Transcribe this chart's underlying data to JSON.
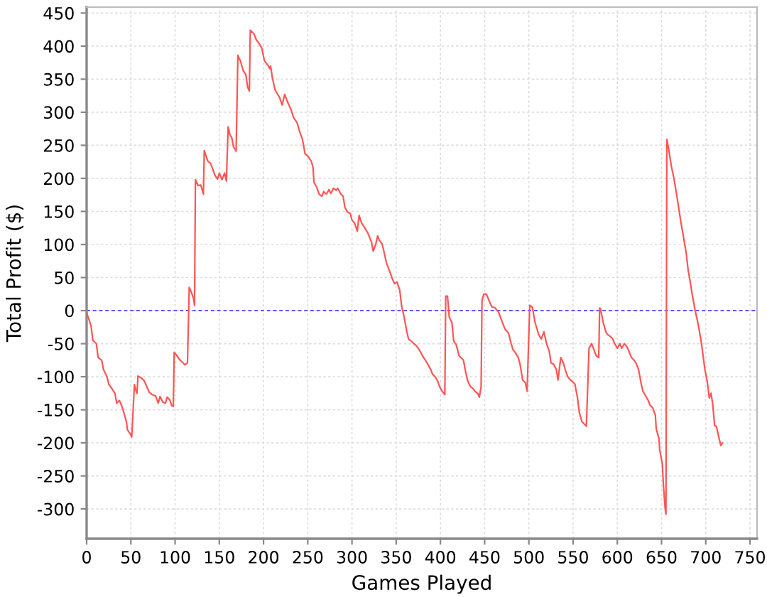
{
  "chart_data": {
    "type": "line",
    "xlabel": "Games Played",
    "ylabel": "Total Profit ($)",
    "x": [
      0,
      5,
      7,
      11,
      13,
      17,
      19,
      23,
      25,
      28,
      32,
      34,
      37,
      40,
      42,
      45,
      46,
      49,
      51,
      54,
      56,
      57,
      58,
      62,
      65,
      67,
      71,
      74,
      78,
      81,
      83,
      86,
      89,
      91,
      94,
      96,
      98,
      99,
      102,
      105,
      109,
      111,
      114,
      116,
      118,
      121,
      122,
      123,
      126,
      129,
      132,
      133,
      137,
      140,
      142,
      145,
      148,
      150,
      153,
      156,
      158,
      160,
      162,
      164,
      166,
      169,
      171,
      174,
      177,
      180,
      182,
      184,
      185,
      189,
      192,
      194,
      198,
      201,
      205,
      207,
      208,
      210,
      213,
      216,
      218,
      221,
      224,
      227,
      231,
      234,
      238,
      241,
      244,
      247,
      250,
      254,
      256,
      257,
      260,
      263,
      266,
      268,
      271,
      274,
      276,
      279,
      282,
      284,
      287,
      290,
      292,
      295,
      298,
      300,
      303,
      306,
      308,
      311,
      315,
      318,
      322,
      324,
      327,
      329,
      331,
      334,
      336,
      339,
      343,
      346,
      348,
      351,
      354,
      356,
      359,
      362,
      364,
      367,
      370,
      372,
      375,
      378,
      380,
      383,
      386,
      389,
      391,
      394,
      397,
      399,
      402,
      405,
      406,
      408,
      410,
      413,
      415,
      418,
      421,
      423,
      426,
      429,
      431,
      434,
      437,
      439,
      442,
      444,
      446,
      447,
      449,
      452,
      455,
      458,
      462,
      466,
      469,
      473,
      477,
      480,
      482,
      485,
      488,
      490,
      493,
      496,
      498,
      501,
      504,
      507,
      511,
      514,
      517,
      520,
      523,
      525,
      528,
      531,
      533,
      536,
      539,
      541,
      544,
      547,
      549,
      552,
      555,
      557,
      560,
      563,
      565,
      568,
      571,
      573,
      576,
      579,
      580,
      581,
      584,
      587,
      589,
      592,
      595,
      597,
      600,
      603,
      605,
      608,
      611,
      613,
      616,
      619,
      621,
      624,
      627,
      629,
      632,
      635,
      637,
      640,
      643,
      644,
      647,
      648,
      651,
      652,
      654,
      655,
      656,
      658,
      661,
      664,
      667,
      670,
      672,
      675,
      678,
      680,
      682,
      685,
      688,
      691,
      694,
      696,
      699,
      702,
      704,
      706,
      708,
      710,
      712,
      715,
      717,
      719
    ],
    "values": [
      -3,
      -23,
      -45,
      -50,
      -71,
      -75,
      -89,
      -100,
      -111,
      -117,
      -125,
      -140,
      -136,
      -145,
      -154,
      -168,
      -180,
      -186,
      -191,
      -112,
      -122,
      -125,
      -99,
      -102,
      -106,
      -112,
      -124,
      -127,
      -129,
      -140,
      -130,
      -138,
      -140,
      -131,
      -135,
      -143,
      -145,
      -63,
      -68,
      -74,
      -79,
      -82,
      -79,
      35,
      29,
      18,
      8,
      198,
      189,
      190,
      176,
      242,
      226,
      223,
      216,
      205,
      199,
      208,
      198,
      208,
      196,
      278,
      266,
      262,
      248,
      241,
      386,
      377,
      363,
      357,
      338,
      332,
      424,
      419,
      409,
      406,
      397,
      378,
      371,
      366,
      370,
      352,
      334,
      327,
      323,
      311,
      327,
      316,
      304,
      292,
      284,
      270,
      259,
      237,
      234,
      226,
      216,
      194,
      187,
      176,
      173,
      180,
      176,
      183,
      177,
      185,
      182,
      185,
      177,
      173,
      156,
      149,
      147,
      137,
      132,
      120,
      144,
      132,
      124,
      117,
      104,
      90,
      101,
      113,
      106,
      101,
      90,
      72,
      58,
      47,
      41,
      43,
      31,
      8,
      -10,
      -32,
      -43,
      -46,
      -50,
      -52,
      -57,
      -64,
      -69,
      -75,
      -82,
      -89,
      -96,
      -100,
      -107,
      -115,
      -122,
      -127,
      22,
      22,
      -10,
      -18,
      -46,
      -52,
      -68,
      -71,
      -75,
      -96,
      -107,
      -115,
      -118,
      -122,
      -125,
      -131,
      -115,
      15,
      25,
      25,
      15,
      6,
      4,
      -3,
      -14,
      -28,
      -34,
      -50,
      -59,
      -64,
      -71,
      -81,
      -105,
      -109,
      -122,
      8,
      5,
      -18,
      -36,
      -43,
      -32,
      -50,
      -61,
      -79,
      -81,
      -89,
      -105,
      -71,
      -79,
      -89,
      -100,
      -105,
      -107,
      -111,
      -132,
      -154,
      -168,
      -172,
      -175,
      -57,
      -50,
      -57,
      -68,
      -71,
      4,
      3,
      -18,
      -32,
      -36,
      -39,
      -43,
      -50,
      -57,
      -50,
      -57,
      -50,
      -55,
      -61,
      -71,
      -75,
      -79,
      -89,
      -111,
      -122,
      -129,
      -136,
      -143,
      -147,
      -158,
      -179,
      -193,
      -211,
      -233,
      -262,
      -298,
      -308,
      259,
      245,
      219,
      200,
      176,
      150,
      133,
      110,
      86,
      62,
      47,
      22,
      0,
      -18,
      -40,
      -58,
      -89,
      -110,
      -132,
      -125,
      -143,
      -174,
      -175,
      -193,
      -204,
      -200
    ],
    "color": "#ff5555",
    "line_style": "solid",
    "xlim": [
      0,
      758
    ],
    "ylim": [
      -345,
      459
    ],
    "xticks": [
      0,
      50,
      100,
      150,
      200,
      250,
      300,
      350,
      400,
      450,
      500,
      550,
      600,
      650,
      700,
      750
    ],
    "yticks": [
      -300,
      -250,
      -200,
      -150,
      -100,
      -50,
      0,
      50,
      100,
      150,
      200,
      250,
      300,
      350,
      400,
      450
    ],
    "grid": true,
    "ref_lines": [
      {
        "axis": "y",
        "value": 0,
        "color": "#5a5aff",
        "line_style": "dashed"
      }
    ]
  }
}
